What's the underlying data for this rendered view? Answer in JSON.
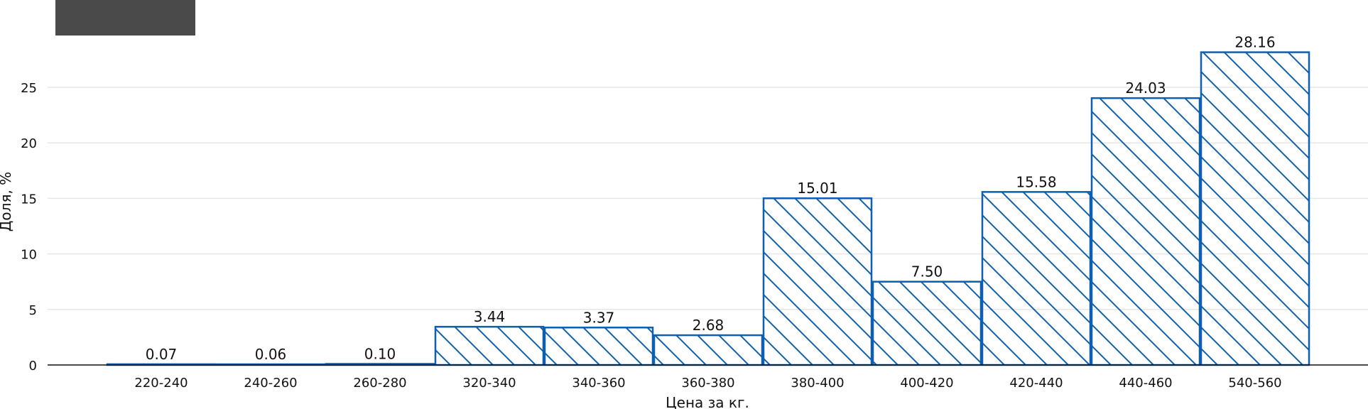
{
  "chart_data": {
    "type": "bar",
    "title": "",
    "xlabel": "Цена за кг.",
    "ylabel": "Доля, %",
    "categories": [
      "220-240",
      "240-260",
      "260-280",
      "320-340",
      "340-360",
      "360-380",
      "380-400",
      "400-420",
      "420-440",
      "440-460",
      "540-560"
    ],
    "values": [
      0.07,
      0.06,
      0.1,
      3.44,
      3.37,
      2.68,
      15.01,
      7.5,
      15.58,
      24.03,
      28.16
    ],
    "value_labels": [
      "0.07",
      "0.06",
      "0.10",
      "3.44",
      "3.37",
      "2.68",
      "15.01",
      "7.50",
      "15.58",
      "24.03",
      "28.16"
    ],
    "yticks": [
      0,
      5,
      10,
      15,
      20,
      25
    ],
    "ylim": [
      0,
      29.5
    ],
    "grid": true,
    "bar_style": "hatched",
    "colors": {
      "bar_edge": "#0f5fb0",
      "grid": "#e6e6e6",
      "axis": "#111111",
      "legend_box": "#4a4a4a"
    }
  }
}
